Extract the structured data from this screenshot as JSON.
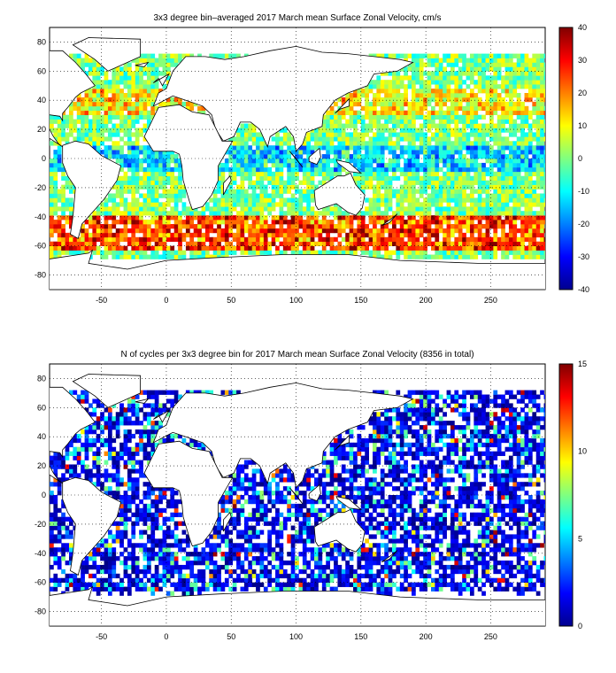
{
  "panels": [
    {
      "title": "3x3 degree bin–averaged 2017 March mean Surface Zonal Velocity, cm/s",
      "x_ticks": [
        "-50",
        "0",
        "50",
        "100",
        "150",
        "200",
        "250"
      ],
      "y_ticks": [
        "80",
        "60",
        "40",
        "20",
        "0",
        "-20",
        "-40",
        "-60",
        "-80"
      ],
      "colorbar_ticks": [
        "40",
        "30",
        "20",
        "10",
        "0",
        "-10",
        "-20",
        "-30",
        "-40"
      ],
      "colorbar_range": [
        -40,
        40
      ],
      "colormap": "jet"
    },
    {
      "title": "N of cycles per 3x3 degree bin for 2017 March mean Surface Zonal Velocity (8356 in total)",
      "x_ticks": [
        "-50",
        "0",
        "50",
        "100",
        "150",
        "200",
        "250"
      ],
      "y_ticks": [
        "80",
        "60",
        "40",
        "20",
        "0",
        "-20",
        "-40",
        "-60",
        "-80"
      ],
      "colorbar_ticks": [
        "15",
        "10",
        "5",
        "0"
      ],
      "colorbar_range": [
        0,
        15
      ],
      "colormap": "jet"
    }
  ]
}
